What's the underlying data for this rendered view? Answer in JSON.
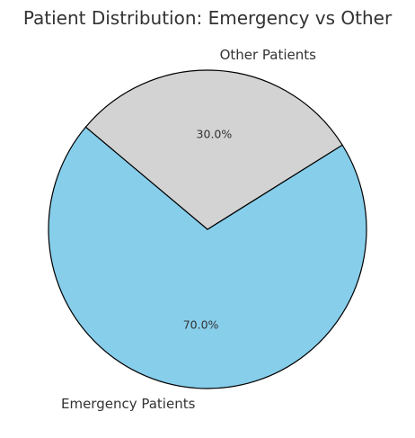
{
  "chart_data": {
    "type": "pie",
    "title": "Patient Distribution: Emergency vs Other",
    "start_angle_deg": 140,
    "direction": "counterclockwise",
    "slices": [
      {
        "label": "Emergency Patients",
        "value": 70.0,
        "pct_label": "70.0%",
        "color": "#87CEEB"
      },
      {
        "label": "Other Patients",
        "value": 30.0,
        "pct_label": "30.0%",
        "color": "#D3D3D3"
      }
    ],
    "edge_color": "#000000"
  }
}
